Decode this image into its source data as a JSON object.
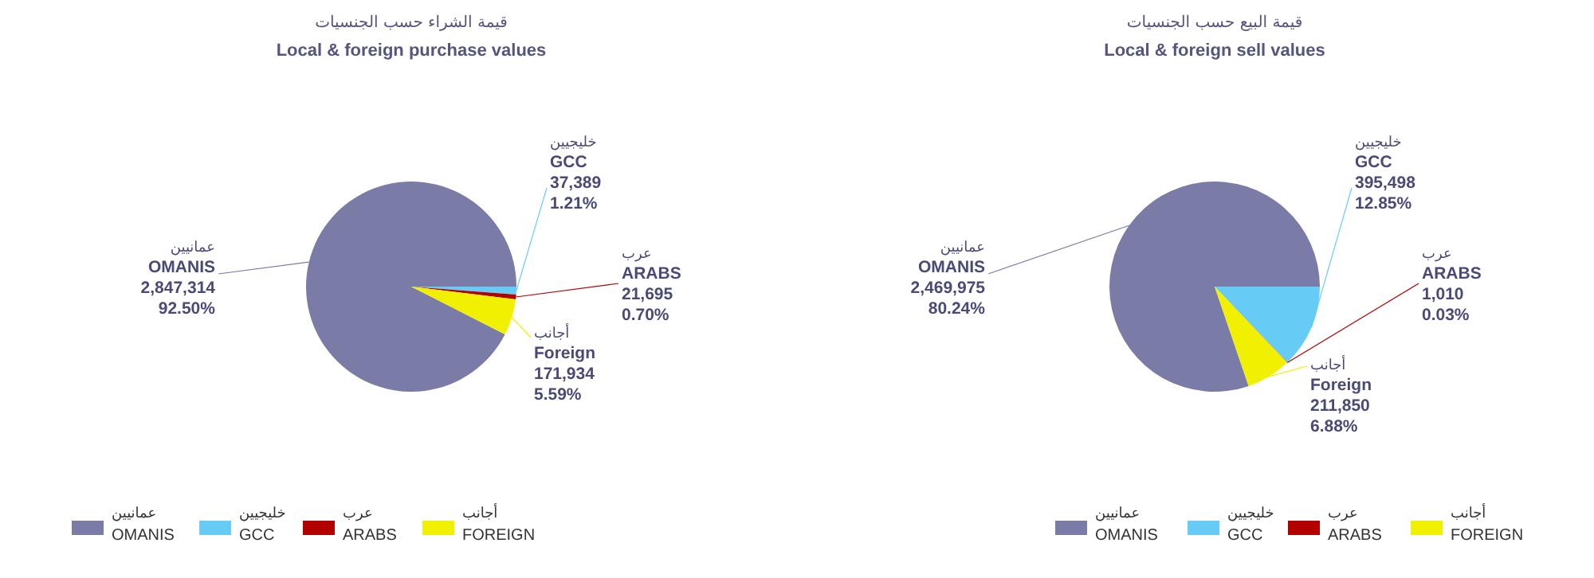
{
  "chart_data": [
    {
      "type": "pie",
      "title": "قيمة الشراء حسب الجنسيات",
      "subtitle": "Local & foreign purchase values",
      "categories": [
        "OMANIS",
        "GCC",
        "ARABS",
        "FOREIGN"
      ],
      "values": [
        2847314,
        37389,
        21695,
        171934
      ],
      "colors": [
        "#7b7ba8",
        "#66ccf5",
        "#b30000",
        "#f0f000"
      ],
      "value_labels": [
        "2,847,314",
        "37,389",
        "21,695",
        "171,934"
      ],
      "legend": "bottom",
      "annotations": [
        "عمانيين",
        "خليجيين",
        "عرب",
        "أجانب",
        "عمانيين",
        "خليجيين",
        "عرب",
        "أجانب",
        "OMANIS",
        "GCC",
        "ARABS",
        "Foreign",
        "92.50%",
        "1.21%",
        "0.70%",
        "5.59%"
      ]
    },
    {
      "type": "pie",
      "title": "قيمة البيع حسب الجنسيات",
      "subtitle": "Local & foreign sell values",
      "categories": [
        "OMANIS",
        "GCC",
        "ARABS",
        "FOREIGN"
      ],
      "values": [
        2469975,
        395498,
        1010,
        211850
      ],
      "colors": [
        "#7b7ba8",
        "#66ccf5",
        "#b30000",
        "#f0f000"
      ],
      "value_labels": [
        "2,469,975",
        "395,498",
        "1,010",
        "211,850"
      ],
      "legend": "bottom",
      "annotations": [
        "عمانيين",
        "خليجيين",
        "عرب",
        "أجانب",
        "عمانيين",
        "خليجيين",
        "عرب",
        "أجانب",
        "OMANIS",
        "GCC",
        "ARABS",
        "Foreign",
        "80.24%",
        "12.85%",
        "0.03%",
        "6.88%"
      ]
    }
  ]
}
